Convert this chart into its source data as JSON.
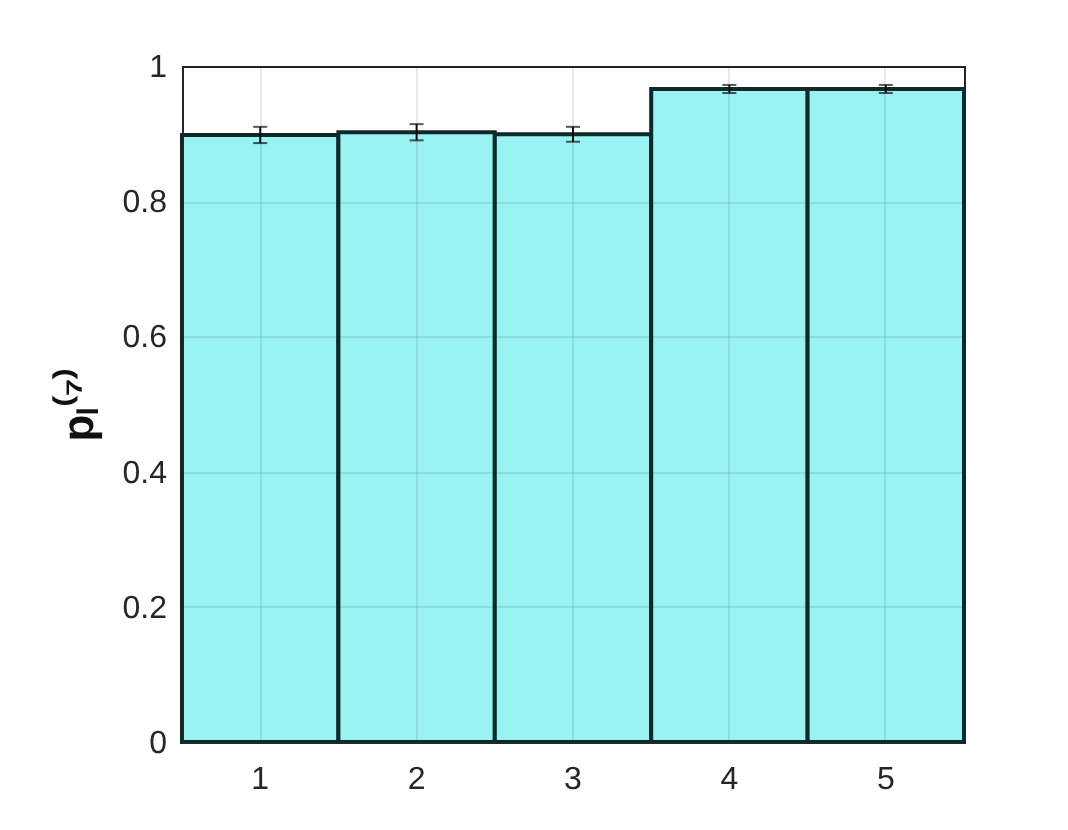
{
  "chart_data": {
    "type": "bar",
    "categories": [
      "1",
      "2",
      "3",
      "4",
      "5"
    ],
    "values": [
      0.898,
      0.902,
      0.899,
      0.966,
      0.966
    ],
    "errors": [
      0.012,
      0.012,
      0.011,
      0.006,
      0.006
    ],
    "color": "#99f3f3",
    "ylabel": "pₗ⁽⁷⁾",
    "ylim": [
      0,
      1
    ],
    "yticks": [
      0,
      0.2,
      0.4,
      0.6,
      0.8,
      1
    ],
    "grid": true
  }
}
